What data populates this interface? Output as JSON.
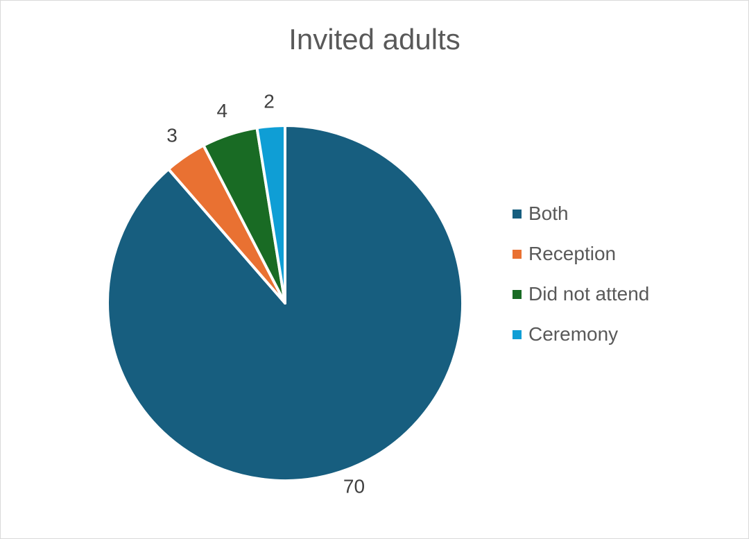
{
  "chart_data": {
    "type": "pie",
    "title": "Invited adults",
    "categories": [
      "Both",
      "Reception",
      "Did not attend",
      "Ceremony"
    ],
    "values": [
      70,
      3,
      4,
      2
    ],
    "slice_order": [
      "Both",
      "Reception",
      "Did not attend",
      "Ceremony"
    ],
    "legend": [
      "Both",
      "Reception",
      "Did not attend",
      "Ceremony"
    ],
    "legend_position": "right",
    "data_labels": [
      "70",
      "3",
      "4",
      "2"
    ],
    "colors": {
      "Both": "#175e7f",
      "Reception": "#e97132",
      "Did not attend": "#196b24",
      "Ceremony": "#0f9ed5"
    }
  }
}
